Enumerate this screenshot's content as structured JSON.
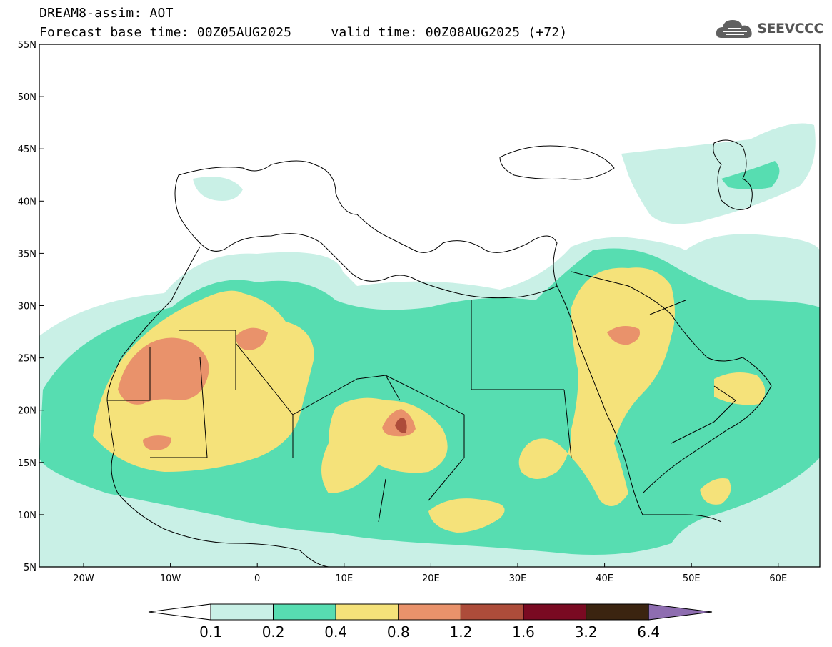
{
  "header": {
    "title_line1": "DREAM8-assim: AOT",
    "title_line2": "Forecast base time: 00Z05AUG2025     valid time: 00Z08AUG2025 (+72)"
  },
  "logo": {
    "text": "SEEVCCC",
    "icon": "cloud-logo-icon"
  },
  "axes": {
    "lat_labels": [
      "55N",
      "50N",
      "45N",
      "40N",
      "35N",
      "30N",
      "25N",
      "20N",
      "15N",
      "10N",
      "5N"
    ],
    "lon_labels": [
      "20W",
      "10W",
      "0",
      "10E",
      "20E",
      "30E",
      "40E",
      "50E",
      "60E"
    ]
  },
  "colorbar": {
    "labels": [
      "0.1",
      "0.2",
      "0.4",
      "0.8",
      "1.2",
      "1.6",
      "3.2",
      "6.4"
    ],
    "colors": [
      "#ffffff",
      "#c9f0e6",
      "#57ddb1",
      "#f5e27a",
      "#e9926b",
      "#ad4c3a",
      "#7a0a22",
      "#3b2410",
      "#8e6db0"
    ]
  },
  "colors": {
    "land": "#ffffff",
    "border": "#000000",
    "c01": "#c9f0e6",
    "c02": "#57ddb1",
    "c04": "#f5e27a",
    "c08": "#e9926b",
    "c12": "#ad4c3a",
    "c16": "#7a0a22"
  }
}
